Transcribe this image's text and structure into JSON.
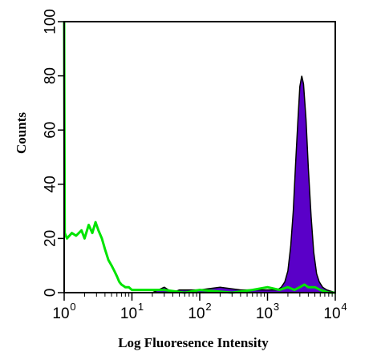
{
  "chart_data": {
    "type": "area",
    "title": "",
    "xlabel": "Log Fluoresence Intensity",
    "ylabel": "Counts",
    "xscale": "log",
    "xlim": [
      1,
      10000
    ],
    "ylim": [
      0,
      100
    ],
    "grid": false,
    "legend": "none",
    "y_ticks": [
      0,
      20,
      40,
      60,
      80,
      100
    ],
    "y_tick_labels": [
      "0",
      "20",
      "40",
      "60",
      "80",
      "100"
    ],
    "x_ticks": [
      1,
      10,
      100,
      1000,
      10000
    ],
    "x_tick_labels": [
      {
        "base": "10",
        "exp": "0"
      },
      {
        "base": "10",
        "exp": "1"
      },
      {
        "base": "10",
        "exp": "2"
      },
      {
        "base": "10",
        "exp": "3"
      },
      {
        "base": "10",
        "exp": "4"
      }
    ],
    "series": [
      {
        "style": "filled",
        "fill": "#5a00c8",
        "stroke": "#000000",
        "x": [
          1,
          20,
          30,
          40,
          50,
          80,
          100,
          200,
          400,
          800,
          1000,
          1200,
          1400,
          1600,
          1800,
          2000,
          2200,
          2400,
          2600,
          2800,
          3000,
          3200,
          3400,
          3700,
          4000,
          4400,
          4800,
          5300,
          5800,
          6500,
          7500,
          10000
        ],
        "y": [
          0,
          0,
          2,
          0,
          1,
          1,
          1,
          2,
          1,
          1,
          1,
          1,
          1,
          2,
          4,
          8,
          17,
          30,
          48,
          63,
          76,
          80,
          77,
          64,
          46,
          28,
          15,
          7,
          4,
          2,
          1,
          0
        ]
      },
      {
        "style": "line",
        "stroke": "#00e400",
        "x": [
          1,
          1.02,
          1.1,
          1.3,
          1.5,
          1.8,
          2.0,
          2.3,
          2.6,
          2.9,
          3.2,
          3.6,
          4.0,
          4.5,
          5.0,
          5.5,
          6.0,
          6.5,
          7.0,
          8.0,
          9.0,
          10,
          15,
          30,
          60,
          100,
          300,
          600,
          1000,
          1500,
          2000,
          2500,
          3000,
          3500,
          4000,
          5000,
          6000,
          8000,
          10000
        ],
        "y": [
          100,
          22,
          20,
          22,
          21,
          23,
          20,
          25,
          22,
          26,
          23,
          20,
          16,
          12,
          10,
          8,
          6,
          4,
          3,
          2,
          2,
          1,
          1,
          1,
          0,
          1,
          0,
          1,
          2,
          1,
          2,
          1,
          2,
          3,
          2,
          2,
          1,
          0,
          0
        ]
      }
    ]
  }
}
